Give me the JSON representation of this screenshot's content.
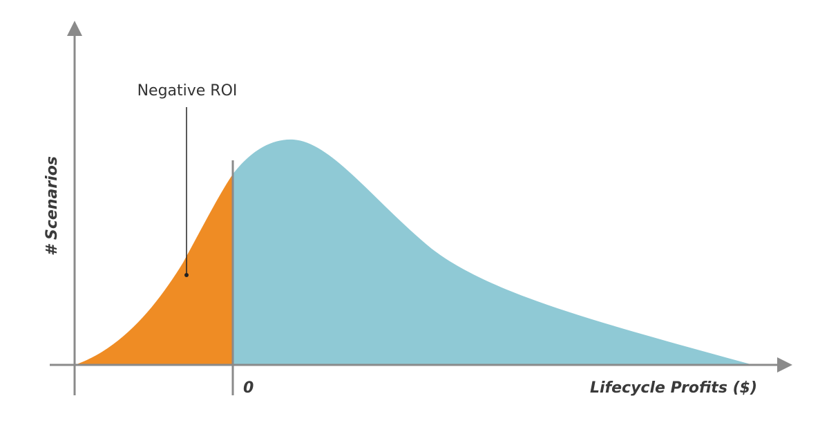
{
  "diagram": {
    "y_axis_label": "# Scenarios",
    "x_axis_label": "Lifecycle Profits ($)",
    "zero_label": "0",
    "annotation": "Negative ROI"
  }
}
